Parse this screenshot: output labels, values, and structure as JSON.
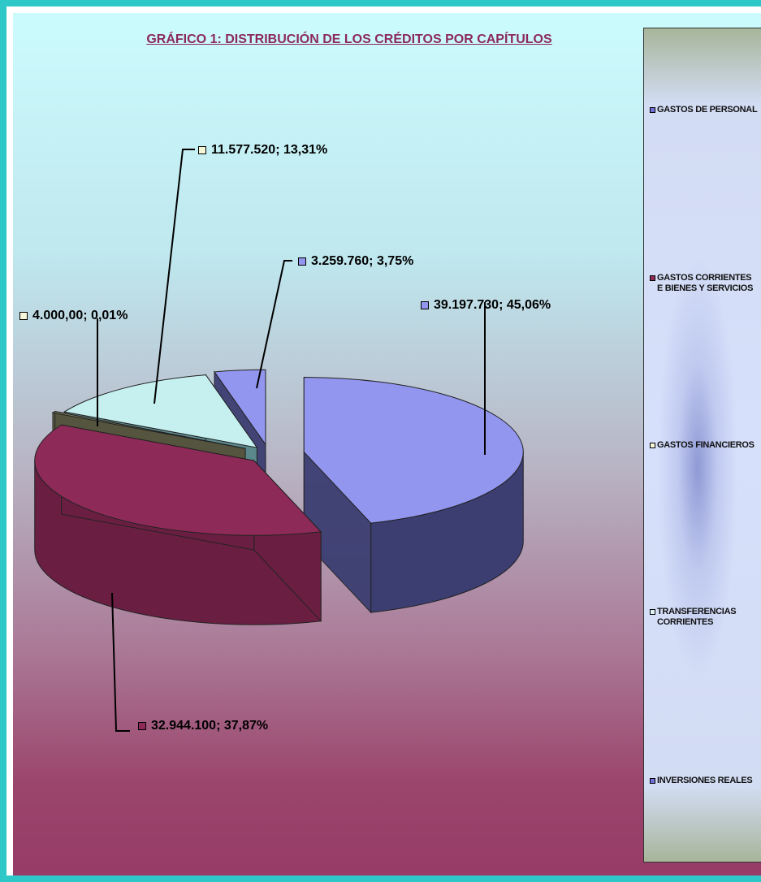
{
  "chart_data": {
    "type": "pie",
    "title": "GRÁFICO 1: DISTRIBUCIÓN DE LOS CRÉDITOS POR CAPÍTULOS",
    "slices": [
      {
        "name": "GASTOS DE PERSONAL",
        "value": 39197730,
        "label": "39.197.730; 45,06%",
        "color": "#9296ee",
        "side": "#3c3e72"
      },
      {
        "name": "GASTOS CORRIENTES EN BIENES Y SERVICIOS",
        "value": 32944100,
        "label": "32.944.100; 37,87%",
        "color": "#8e2a58",
        "side": "#6a1f42"
      },
      {
        "name": "GASTOS FINANCIEROS",
        "value": 4000,
        "label": "4.000,00; 0,01%",
        "color": "#7b7a5c",
        "side": "#55543e"
      },
      {
        "name": "TRANSFERENCIAS CORRIENTES",
        "value": 11577520,
        "label": "11.577.520; 13,31%",
        "color": "#c6f0f0",
        "side": "#5c8a8c"
      },
      {
        "name": "INVERSIONES REALES",
        "value": 3259760,
        "label": "3.259.760; 3,75%",
        "color": "#9296ee",
        "side": "#3c3e72"
      }
    ],
    "legend": {
      "position": "right",
      "entries": [
        {
          "text": "GASTOS DE PERSONAL",
          "swatch": "#7070d8"
        },
        {
          "text": "GASTOS CORRIENTES E BIENES Y SERVICIOS",
          "swatch": "#8e2a58"
        },
        {
          "text": "GASTOS FINANCIEROS",
          "swatch": "#f6f6d8"
        },
        {
          "text": "TRANSFERENCIAS CORRIENTES",
          "swatch": "#dff6f6"
        },
        {
          "text": "INVERSIONES REALES",
          "swatch": "#7070d8"
        }
      ]
    },
    "style": "3d-exploded"
  }
}
